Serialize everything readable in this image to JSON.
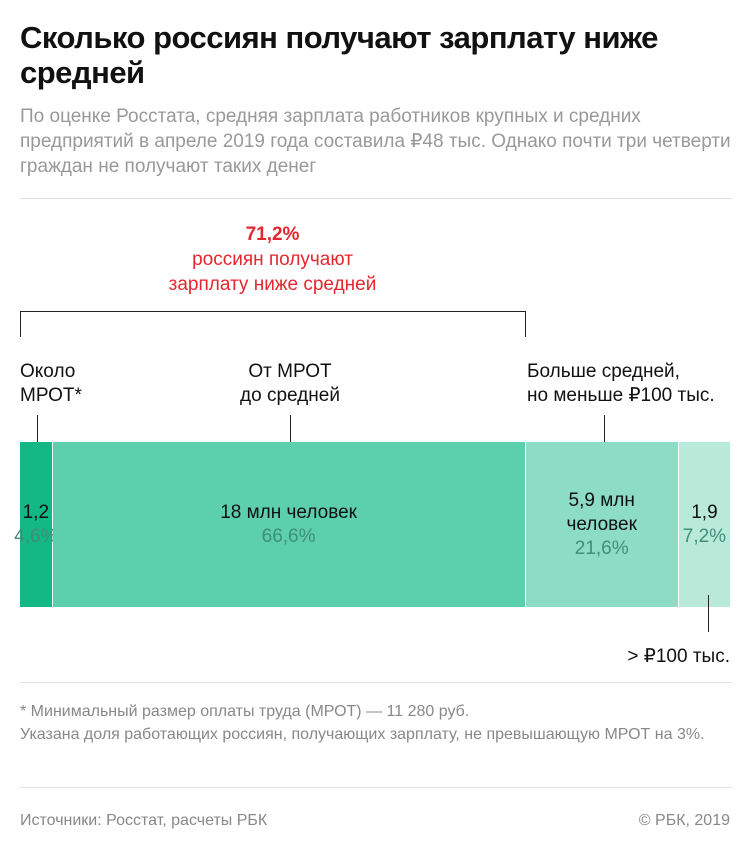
{
  "title": "Сколько россиян получают зарплату ниже средней",
  "subtitle": "По оценке Росстата, средняя зарплата работников крупных и средних предприятий в апреле 2019 года составила ₽48 тыс. Однако почти три четверти граждан не получают таких денег",
  "highlight": {
    "value": "71,2%",
    "line1": "россиян получают",
    "line2": "зарплату ниже средней"
  },
  "chart_data": {
    "type": "bar",
    "orientation": "horizontal-stacked",
    "segments": [
      {
        "label": [
          "Около",
          "МРОТ*"
        ],
        "value_text": [
          "1,2"
        ],
        "value": 1.2,
        "percent_text": "4,6%",
        "percent": 4.6,
        "color": "#14b884"
      },
      {
        "label": [
          "От МРОТ",
          "до средней"
        ],
        "value_text": [
          "18 млн человек"
        ],
        "value": 18,
        "percent_text": "66,6%",
        "percent": 66.6,
        "color": "#5ccfad"
      },
      {
        "label": [
          "Больше средней,",
          "но меньше ₽100 тыс."
        ],
        "value_text": [
          "5,9 млн",
          "человек"
        ],
        "value": 5.9,
        "percent_text": "21,6%",
        "percent": 21.6,
        "color": "#8ddcc4"
      },
      {
        "label": [
          "> ₽100 тыс."
        ],
        "value_text": [
          "1,9"
        ],
        "value": 1.9,
        "percent_text": "7,2%",
        "percent": 7.2,
        "color": "#b8e9d9"
      }
    ]
  },
  "footnote": [
    "* Минимальный размер оплаты труда (МРОТ) — 11 280 руб.",
    "Указана доля работающих россиян, получающих зарплату, не превышающую МРОТ на 3%."
  ],
  "source": "Источники: Росстат, расчеты РБК",
  "copyright": "© РБК, 2019"
}
